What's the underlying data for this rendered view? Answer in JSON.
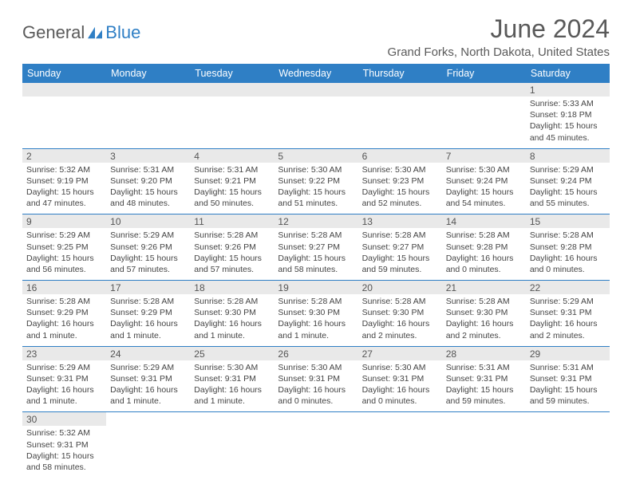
{
  "brand": {
    "part1": "General",
    "part2": "Blue"
  },
  "title": "June 2024",
  "location": "Grand Forks, North Dakota, United States",
  "colors": {
    "accent": "#2f7fc5",
    "header_text": "#ffffff",
    "daybar_bg": "#e9e9e9",
    "border": "#2f7fc5",
    "text": "#444444",
    "title_text": "#5a5a5a"
  },
  "day_names": [
    "Sunday",
    "Monday",
    "Tuesday",
    "Wednesday",
    "Thursday",
    "Friday",
    "Saturday"
  ],
  "weeks": [
    [
      {
        "blank": true
      },
      {
        "blank": true
      },
      {
        "blank": true
      },
      {
        "blank": true
      },
      {
        "blank": true
      },
      {
        "blank": true
      },
      {
        "n": "1",
        "sunrise": "5:33 AM",
        "sunset": "9:18 PM",
        "daylight": "15 hours and 45 minutes."
      }
    ],
    [
      {
        "n": "2",
        "sunrise": "5:32 AM",
        "sunset": "9:19 PM",
        "daylight": "15 hours and 47 minutes."
      },
      {
        "n": "3",
        "sunrise": "5:31 AM",
        "sunset": "9:20 PM",
        "daylight": "15 hours and 48 minutes."
      },
      {
        "n": "4",
        "sunrise": "5:31 AM",
        "sunset": "9:21 PM",
        "daylight": "15 hours and 50 minutes."
      },
      {
        "n": "5",
        "sunrise": "5:30 AM",
        "sunset": "9:22 PM",
        "daylight": "15 hours and 51 minutes."
      },
      {
        "n": "6",
        "sunrise": "5:30 AM",
        "sunset": "9:23 PM",
        "daylight": "15 hours and 52 minutes."
      },
      {
        "n": "7",
        "sunrise": "5:30 AM",
        "sunset": "9:24 PM",
        "daylight": "15 hours and 54 minutes."
      },
      {
        "n": "8",
        "sunrise": "5:29 AM",
        "sunset": "9:24 PM",
        "daylight": "15 hours and 55 minutes."
      }
    ],
    [
      {
        "n": "9",
        "sunrise": "5:29 AM",
        "sunset": "9:25 PM",
        "daylight": "15 hours and 56 minutes."
      },
      {
        "n": "10",
        "sunrise": "5:29 AM",
        "sunset": "9:26 PM",
        "daylight": "15 hours and 57 minutes."
      },
      {
        "n": "11",
        "sunrise": "5:28 AM",
        "sunset": "9:26 PM",
        "daylight": "15 hours and 57 minutes."
      },
      {
        "n": "12",
        "sunrise": "5:28 AM",
        "sunset": "9:27 PM",
        "daylight": "15 hours and 58 minutes."
      },
      {
        "n": "13",
        "sunrise": "5:28 AM",
        "sunset": "9:27 PM",
        "daylight": "15 hours and 59 minutes."
      },
      {
        "n": "14",
        "sunrise": "5:28 AM",
        "sunset": "9:28 PM",
        "daylight": "16 hours and 0 minutes."
      },
      {
        "n": "15",
        "sunrise": "5:28 AM",
        "sunset": "9:28 PM",
        "daylight": "16 hours and 0 minutes."
      }
    ],
    [
      {
        "n": "16",
        "sunrise": "5:28 AM",
        "sunset": "9:29 PM",
        "daylight": "16 hours and 1 minute."
      },
      {
        "n": "17",
        "sunrise": "5:28 AM",
        "sunset": "9:29 PM",
        "daylight": "16 hours and 1 minute."
      },
      {
        "n": "18",
        "sunrise": "5:28 AM",
        "sunset": "9:30 PM",
        "daylight": "16 hours and 1 minute."
      },
      {
        "n": "19",
        "sunrise": "5:28 AM",
        "sunset": "9:30 PM",
        "daylight": "16 hours and 1 minute."
      },
      {
        "n": "20",
        "sunrise": "5:28 AM",
        "sunset": "9:30 PM",
        "daylight": "16 hours and 2 minutes."
      },
      {
        "n": "21",
        "sunrise": "5:28 AM",
        "sunset": "9:30 PM",
        "daylight": "16 hours and 2 minutes."
      },
      {
        "n": "22",
        "sunrise": "5:29 AM",
        "sunset": "9:31 PM",
        "daylight": "16 hours and 2 minutes."
      }
    ],
    [
      {
        "n": "23",
        "sunrise": "5:29 AM",
        "sunset": "9:31 PM",
        "daylight": "16 hours and 1 minute."
      },
      {
        "n": "24",
        "sunrise": "5:29 AM",
        "sunset": "9:31 PM",
        "daylight": "16 hours and 1 minute."
      },
      {
        "n": "25",
        "sunrise": "5:30 AM",
        "sunset": "9:31 PM",
        "daylight": "16 hours and 1 minute."
      },
      {
        "n": "26",
        "sunrise": "5:30 AM",
        "sunset": "9:31 PM",
        "daylight": "16 hours and 0 minutes."
      },
      {
        "n": "27",
        "sunrise": "5:30 AM",
        "sunset": "9:31 PM",
        "daylight": "16 hours and 0 minutes."
      },
      {
        "n": "28",
        "sunrise": "5:31 AM",
        "sunset": "9:31 PM",
        "daylight": "15 hours and 59 minutes."
      },
      {
        "n": "29",
        "sunrise": "5:31 AM",
        "sunset": "9:31 PM",
        "daylight": "15 hours and 59 minutes."
      }
    ],
    [
      {
        "n": "30",
        "sunrise": "5:32 AM",
        "sunset": "9:31 PM",
        "daylight": "15 hours and 58 minutes."
      },
      {
        "blank": true
      },
      {
        "blank": true
      },
      {
        "blank": true
      },
      {
        "blank": true
      },
      {
        "blank": true
      },
      {
        "blank": true
      }
    ]
  ],
  "labels": {
    "sunrise": "Sunrise:",
    "sunset": "Sunset:",
    "daylight": "Daylight:"
  }
}
